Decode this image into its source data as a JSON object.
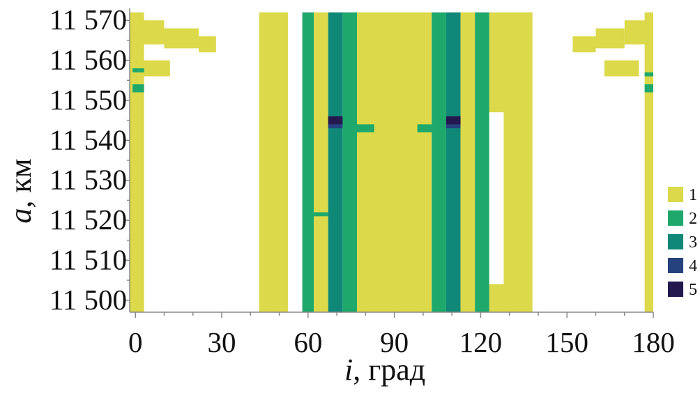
{
  "chart_data": {
    "type": "heatmap",
    "title": "",
    "xlabel": {
      "var": "i",
      "unit": ", град"
    },
    "ylabel": {
      "var": "a",
      "unit": ", км"
    },
    "xlim": [
      -2,
      180
    ],
    "ylim": [
      11497,
      11573
    ],
    "xticks": [
      {
        "value": 0,
        "label": "0"
      },
      {
        "value": 30,
        "label": "30"
      },
      {
        "value": 60,
        "label": "60"
      },
      {
        "value": 90,
        "label": "90"
      },
      {
        "value": 120,
        "label": "120"
      },
      {
        "value": 150,
        "label": "150"
      },
      {
        "value": 180,
        "label": "180"
      }
    ],
    "yticks": [
      {
        "value": 11500,
        "label": "11 500"
      },
      {
        "value": 11510,
        "label": "11 510"
      },
      {
        "value": 11520,
        "label": "11 520"
      },
      {
        "value": 11530,
        "label": "11 530"
      },
      {
        "value": 11540,
        "label": "11 540"
      },
      {
        "value": 11550,
        "label": "11 550"
      },
      {
        "value": 11560,
        "label": "11 560"
      },
      {
        "value": 11570,
        "label": "11 570"
      }
    ],
    "legend": {
      "placement": "right",
      "entries": [
        {
          "label": "1",
          "color": "#dcd94a"
        },
        {
          "label": "2",
          "color": "#1fa86c"
        },
        {
          "label": "3",
          "color": "#108878"
        },
        {
          "label": "4",
          "color": "#26427e"
        },
        {
          "label": "5",
          "color": "#23194f"
        }
      ]
    },
    "regions": [
      {
        "class": 1,
        "i": [
          -3,
          3
        ],
        "a": [
          11497,
          11572
        ]
      },
      {
        "class": 1,
        "i": [
          0,
          10
        ],
        "a": [
          11564,
          11570
        ]
      },
      {
        "class": 1,
        "i": [
          10,
          22
        ],
        "a": [
          11563,
          11568
        ]
      },
      {
        "class": 1,
        "i": [
          22,
          28
        ],
        "a": [
          11562,
          11566
        ]
      },
      {
        "class": 1,
        "i": [
          0,
          12
        ],
        "a": [
          11556,
          11560
        ]
      },
      {
        "class": 1,
        "i": [
          43,
          53
        ],
        "a": [
          11497,
          11572
        ]
      },
      {
        "class": 2,
        "i": [
          58,
          62
        ],
        "a": [
          11497,
          11572
        ]
      },
      {
        "class": 1,
        "i": [
          62,
          67
        ],
        "a": [
          11497,
          11572
        ]
      },
      {
        "class": 3,
        "i": [
          67,
          72
        ],
        "a": [
          11497,
          11572
        ]
      },
      {
        "class": 2,
        "i": [
          72,
          77
        ],
        "a": [
          11497,
          11572
        ]
      },
      {
        "class": 1,
        "i": [
          77,
          103
        ],
        "a": [
          11497,
          11572
        ]
      },
      {
        "class": 2,
        "i": [
          103,
          108
        ],
        "a": [
          11497,
          11572
        ]
      },
      {
        "class": 3,
        "i": [
          108,
          113
        ],
        "a": [
          11497,
          11572
        ]
      },
      {
        "class": 1,
        "i": [
          113,
          118
        ],
        "a": [
          11497,
          11572
        ]
      },
      {
        "class": 2,
        "i": [
          118,
          123
        ],
        "a": [
          11497,
          11572
        ]
      },
      {
        "class": 1,
        "i": [
          123,
          138
        ],
        "a": [
          11497,
          11572
        ]
      },
      {
        "class": 1,
        "i": [
          152,
          160
        ],
        "a": [
          11562,
          11566
        ]
      },
      {
        "class": 1,
        "i": [
          160,
          170
        ],
        "a": [
          11563,
          11568
        ]
      },
      {
        "class": 1,
        "i": [
          170,
          180
        ],
        "a": [
          11564,
          11570
        ]
      },
      {
        "class": 1,
        "i": [
          163,
          175
        ],
        "a": [
          11556,
          11560
        ]
      },
      {
        "class": 1,
        "i": [
          177,
          182
        ],
        "a": [
          11497,
          11572
        ]
      },
      {
        "class": 2,
        "i": [
          62,
          67
        ],
        "a": [
          11521,
          11522
        ]
      },
      {
        "class": 2,
        "i": [
          77,
          83
        ],
        "a": [
          11542,
          11544
        ]
      },
      {
        "class": 2,
        "i": [
          98,
          103
        ],
        "a": [
          11542,
          11544
        ]
      },
      {
        "class": 4,
        "i": [
          67,
          72
        ],
        "a": [
          11543,
          11546
        ]
      },
      {
        "class": 4,
        "i": [
          108,
          113
        ],
        "a": [
          11543,
          11546
        ]
      },
      {
        "class": 5,
        "i": [
          67,
          72
        ],
        "a": [
          11544,
          11546
        ]
      },
      {
        "class": 5,
        "i": [
          108,
          113
        ],
        "a": [
          11544,
          11546
        ]
      },
      {
        "class": 2,
        "i": [
          -1,
          3
        ],
        "a": [
          11557,
          11558
        ]
      },
      {
        "class": 2,
        "i": [
          -1,
          3
        ],
        "a": [
          11552,
          11554
        ]
      },
      {
        "class": 2,
        "i": [
          177,
          182
        ],
        "a": [
          11556,
          11557
        ]
      },
      {
        "class": 2,
        "i": [
          177,
          182
        ],
        "a": [
          11552,
          11554
        ]
      }
    ],
    "cutouts": [
      {
        "i": [
          123,
          128
        ],
        "a": [
          11504,
          11547
        ]
      }
    ],
    "grid": false
  }
}
